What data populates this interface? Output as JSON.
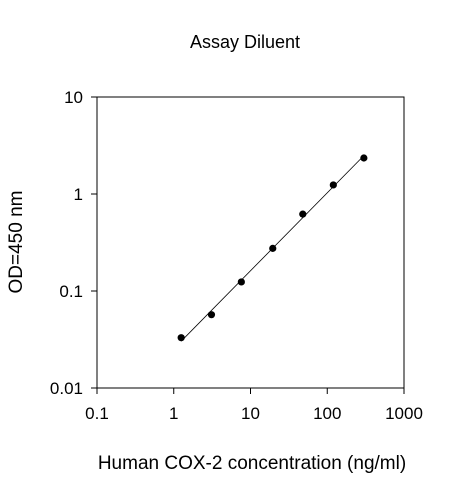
{
  "chart_data": {
    "type": "scatter",
    "title": "Assay Diluent",
    "xlabel": "Human COX-2 concentration (ng/ml)",
    "ylabel": "OD=450 nm",
    "xscale": "log",
    "yscale": "log",
    "xlim": [
      0.1,
      1000
    ],
    "ylim": [
      0.01,
      10
    ],
    "x_ticks": [
      0.1,
      1,
      10,
      100,
      1000
    ],
    "x_tick_labels": [
      "0.1",
      "1",
      "10",
      "100",
      "1000"
    ],
    "y_ticks": [
      0.01,
      0.1,
      1,
      10
    ],
    "y_tick_labels": [
      "0.01",
      "0.1",
      "1",
      "10"
    ],
    "grid": false,
    "legend": "none",
    "series": [
      {
        "x": [
          1.25,
          3.1,
          7.6,
          19.5,
          48,
          120,
          300
        ],
        "y": [
          0.033,
          0.057,
          0.124,
          0.275,
          0.62,
          1.24,
          2.35
        ],
        "marker": "circle",
        "fit_line": true
      }
    ],
    "colors": {
      "points": "#000000",
      "line": "#000000",
      "axes": "#000000",
      "background": "#ffffff"
    }
  }
}
